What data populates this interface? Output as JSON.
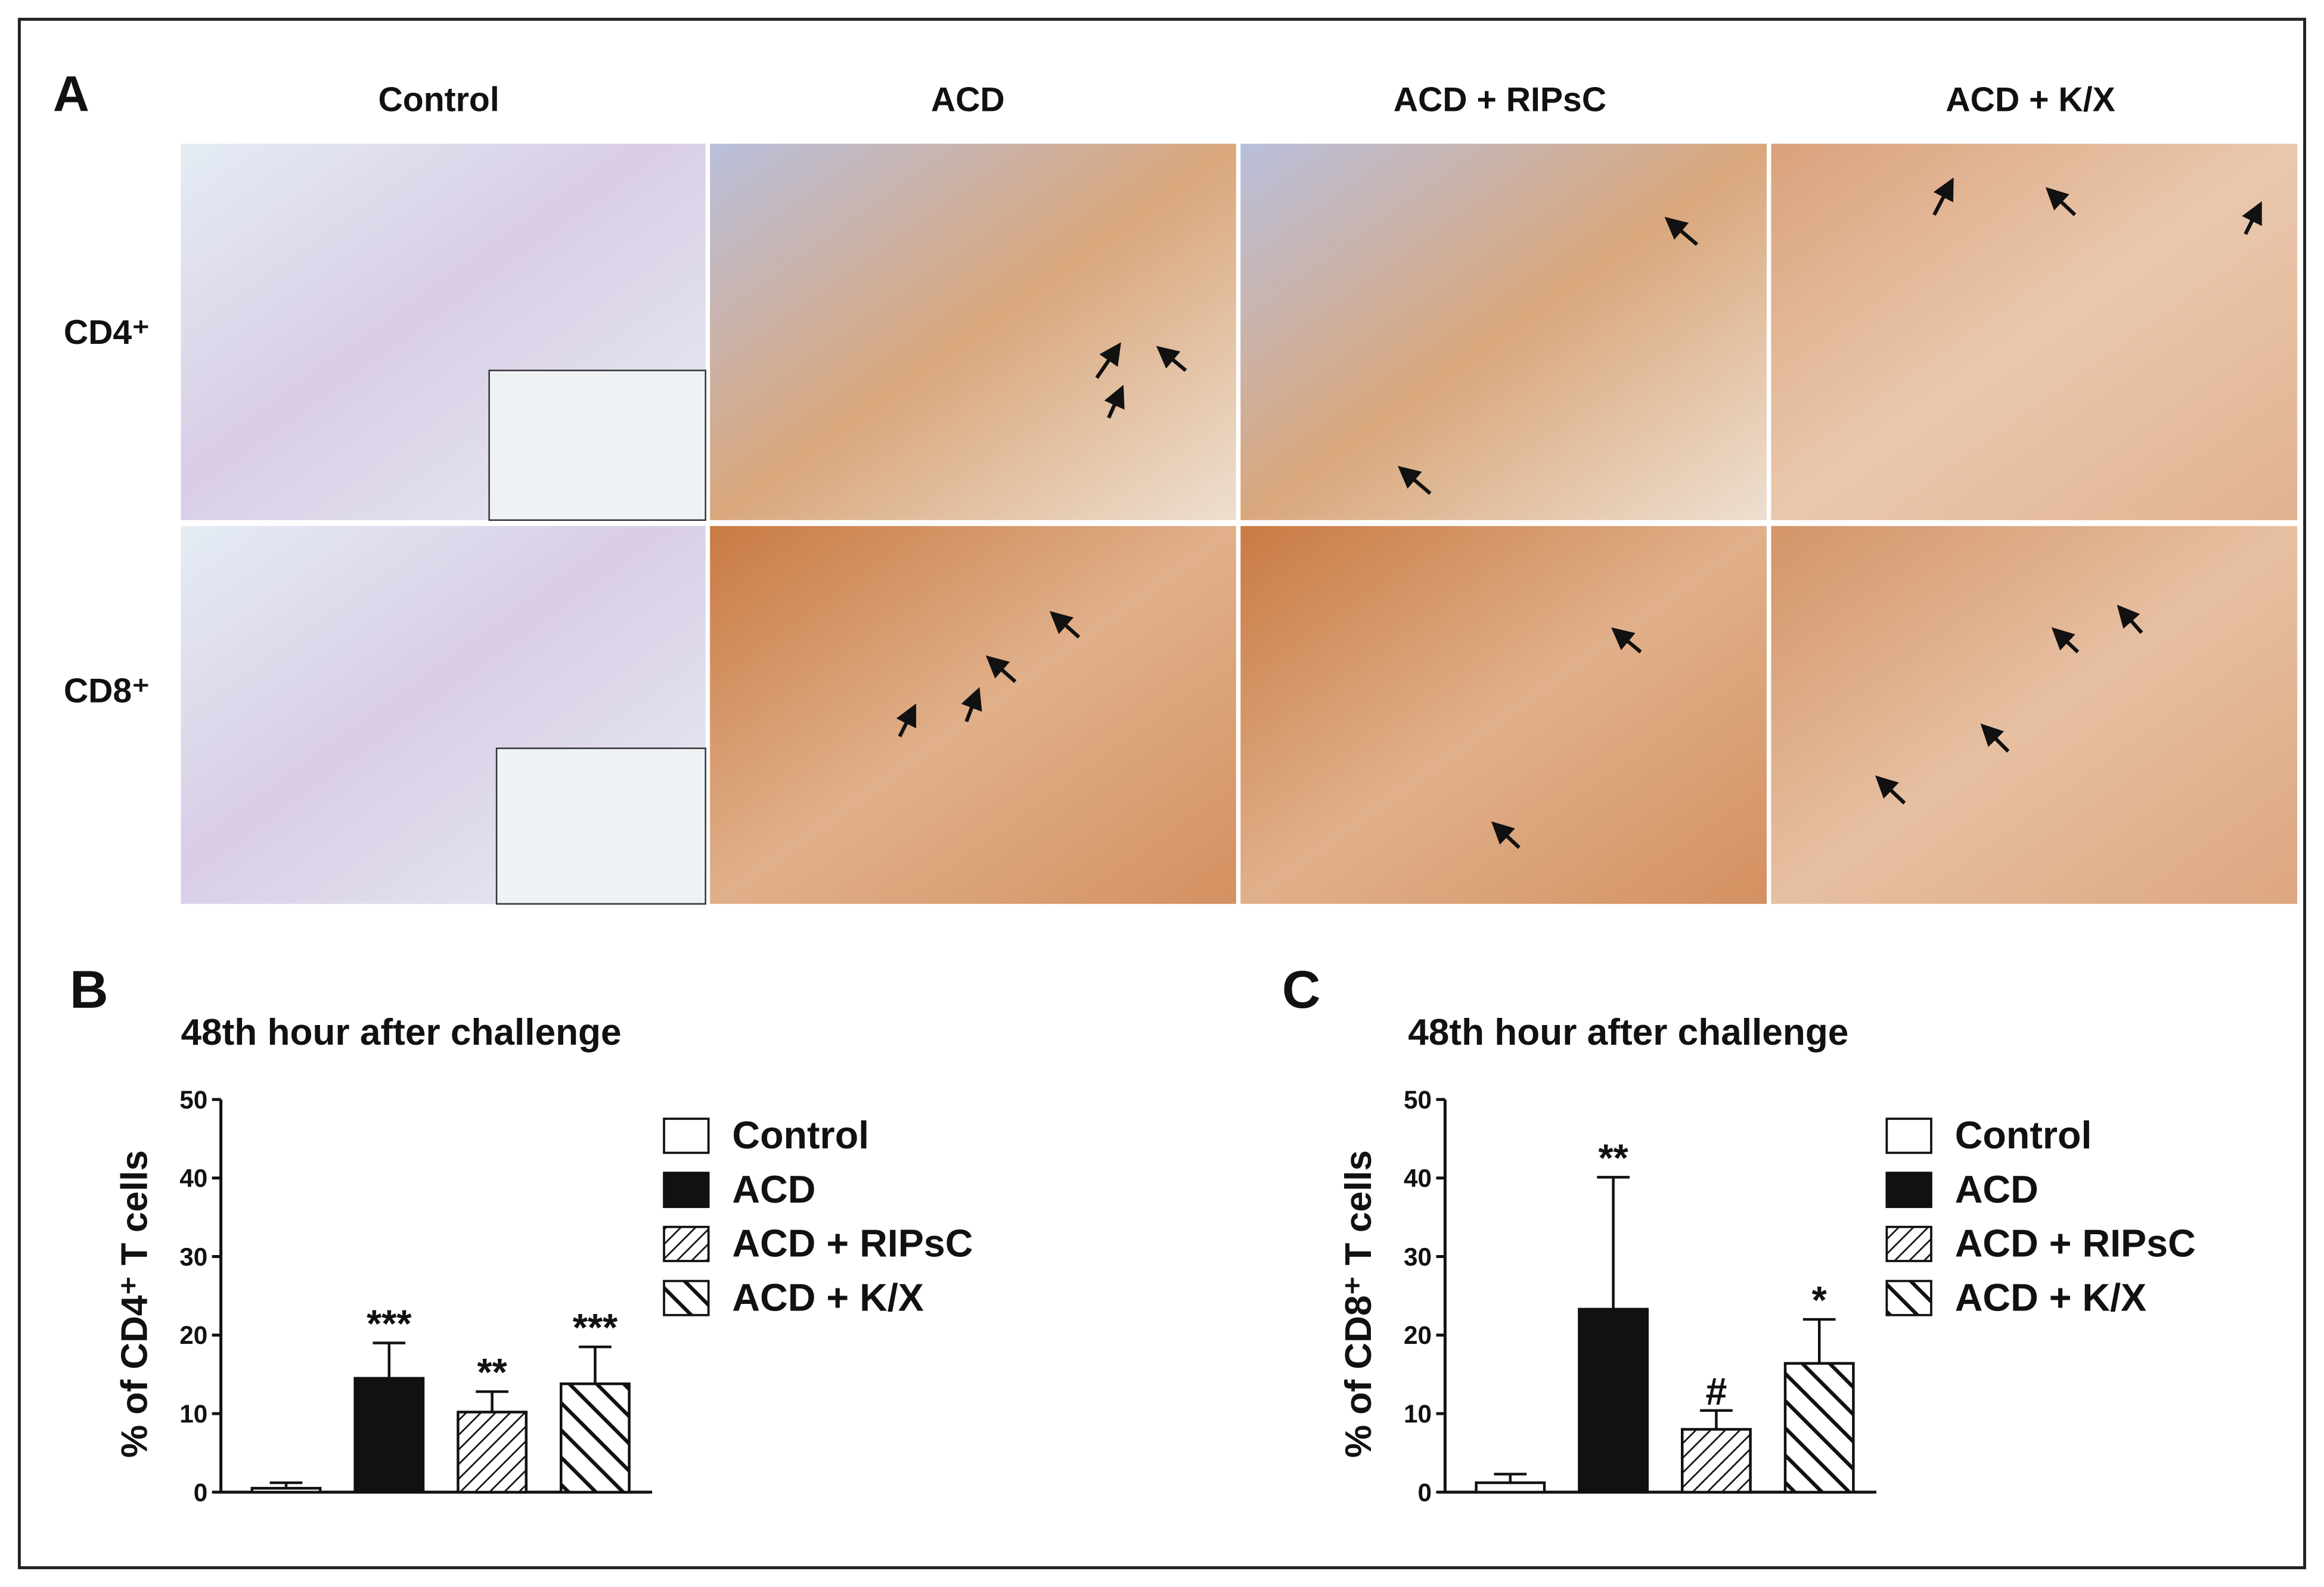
{
  "panel_labels": [
    "A",
    "B",
    "C"
  ],
  "columns": [
    "Control",
    "ACD",
    "ACD + RIPsC",
    "ACD + K/X"
  ],
  "rows": [
    "CD4⁺",
    "CD8⁺"
  ],
  "chart_data": [
    {
      "type": "bar",
      "title": "48th hour after challenge",
      "y_label": "% of CD4⁺ T cells",
      "categories": [
        "Control",
        "ACD",
        "ACD + RIPsC",
        "ACD + K/X"
      ],
      "values": [
        0.5,
        14.5,
        10.2,
        13.8
      ],
      "errors": [
        0.7,
        4.5,
        2.6,
        4.7
      ],
      "annotations": [
        null,
        "***",
        "**",
        "***"
      ],
      "patterns": [
        "white",
        "black",
        "thin-hatch",
        "thick-hatch"
      ],
      "ylim": [
        0,
        50
      ],
      "yticks": [
        0,
        10,
        20,
        30,
        40,
        50
      ]
    },
    {
      "type": "bar",
      "title": "48th hour after challenge",
      "y_label": "% of CD8⁺ T cells",
      "categories": [
        "Control",
        "ACD",
        "ACD + RIPsC",
        "ACD + K/X"
      ],
      "values": [
        1.2,
        23.3,
        8.0,
        16.4
      ],
      "errors": [
        1.1,
        16.8,
        2.4,
        5.6
      ],
      "annotations": [
        null,
        "**",
        "#",
        "*"
      ],
      "patterns": [
        "white",
        "black",
        "thin-hatch",
        "thick-hatch"
      ],
      "ylim": [
        0,
        50
      ],
      "yticks": [
        0,
        10,
        20,
        30,
        40,
        50
      ]
    }
  ]
}
